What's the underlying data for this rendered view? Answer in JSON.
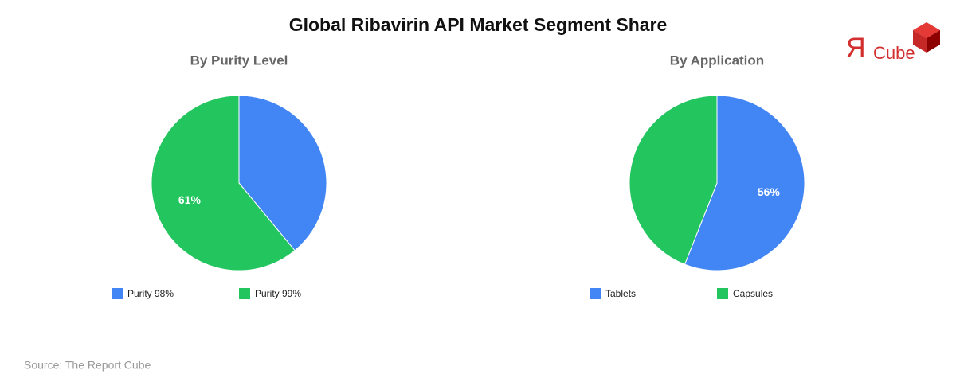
{
  "title": "Global Ribavirin API Market Segment Share",
  "source": "Source: The Report Cube",
  "logo": {
    "mark": "Я",
    "text": "Cube"
  },
  "chart_data": [
    {
      "type": "pie",
      "title": "By Purity Level",
      "categories": [
        "Purity 98%",
        "Purity 99%"
      ],
      "values": [
        39,
        61
      ],
      "value_labels": [
        null,
        "61%"
      ],
      "colors": [
        "#4285f4",
        "#22c55e"
      ]
    },
    {
      "type": "pie",
      "title": "By Application",
      "categories": [
        "Tablets",
        "Capsules"
      ],
      "values": [
        56,
        44
      ],
      "value_labels": [
        "56%",
        null
      ],
      "colors": [
        "#4285f4",
        "#22c55e"
      ]
    }
  ]
}
